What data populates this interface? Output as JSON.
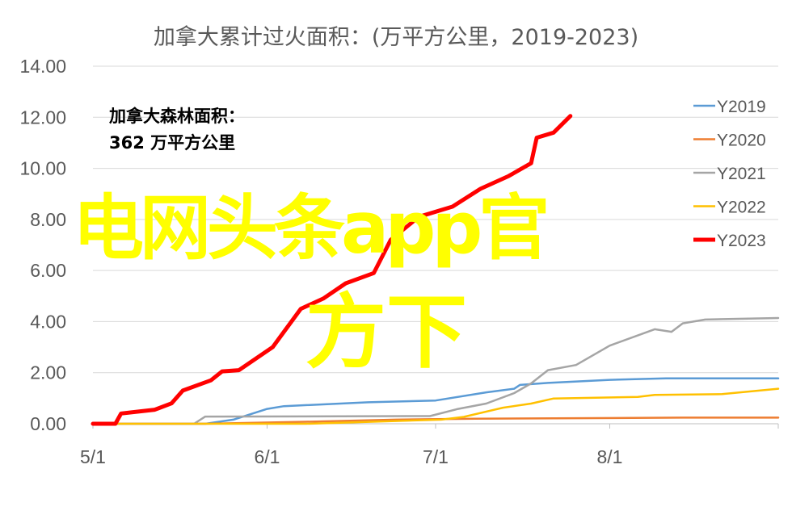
{
  "chart_data": {
    "type": "line",
    "title": "加拿大累计过火面积：(万平方公里，2019-2023)",
    "annotation": [
      "加拿大森林面积：",
      "362 万平方公里"
    ],
    "watermark": [
      "电网头条app官",
      "方下"
    ],
    "xlabel": "",
    "ylabel": "",
    "x_ticks": [
      "5/1",
      "6/1",
      "7/1",
      "8/1"
    ],
    "x_range": [
      "5/1",
      "8/31"
    ],
    "y_ticks": [
      "0.00",
      "2.00",
      "4.00",
      "6.00",
      "8.00",
      "10.00",
      "12.00",
      "14.00"
    ],
    "ylim": [
      0,
      14
    ],
    "grid": "horizontal",
    "legend_position": "right",
    "series": [
      {
        "name": "Y2019",
        "color": "#5B9BD5",
        "points": [
          [
            "5/1",
            0
          ],
          [
            "5/21",
            0
          ],
          [
            "5/26",
            0.16
          ],
          [
            "6/1",
            0.58
          ],
          [
            "6/4",
            0.69
          ],
          [
            "6/19",
            0.84
          ],
          [
            "7/1",
            0.91
          ],
          [
            "7/10",
            1.23
          ],
          [
            "7/15",
            1.37
          ],
          [
            "7/16",
            1.52
          ],
          [
            "7/21",
            1.6
          ],
          [
            "8/1",
            1.72
          ],
          [
            "8/11",
            1.78
          ],
          [
            "8/31",
            1.78
          ]
        ]
      },
      {
        "name": "Y2020",
        "color": "#ED7D31",
        "points": [
          [
            "5/1",
            0
          ],
          [
            "5/21",
            0
          ],
          [
            "6/8",
            0.08
          ],
          [
            "6/24",
            0.16
          ],
          [
            "7/8",
            0.2
          ],
          [
            "8/14",
            0.24
          ],
          [
            "8/31",
            0.24
          ]
        ]
      },
      {
        "name": "Y2021",
        "color": "#A5A5A5",
        "points": [
          [
            "5/1",
            0
          ],
          [
            "5/19",
            0
          ],
          [
            "5/21",
            0.28
          ],
          [
            "6/30",
            0.3
          ],
          [
            "7/5",
            0.58
          ],
          [
            "7/10",
            0.79
          ],
          [
            "7/15",
            1.2
          ],
          [
            "7/18",
            1.58
          ],
          [
            "7/21",
            2.1
          ],
          [
            "7/26",
            2.3
          ],
          [
            "8/1",
            3.06
          ],
          [
            "8/9",
            3.7
          ],
          [
            "8/12",
            3.6
          ],
          [
            "8/14",
            3.93
          ],
          [
            "8/18",
            4.08
          ],
          [
            "8/31",
            4.14
          ]
        ]
      },
      {
        "name": "Y2022",
        "color": "#FFC000",
        "points": [
          [
            "5/1",
            0
          ],
          [
            "6/8",
            0
          ],
          [
            "7/2",
            0.16
          ],
          [
            "7/6",
            0.27
          ],
          [
            "7/13",
            0.63
          ],
          [
            "7/18",
            0.79
          ],
          [
            "7/22",
            0.99
          ],
          [
            "8/6",
            1.05
          ],
          [
            "8/9",
            1.13
          ],
          [
            "8/21",
            1.16
          ],
          [
            "8/31",
            1.37
          ]
        ]
      },
      {
        "name": "Y2023",
        "color": "#FF0000",
        "points": [
          [
            "5/1",
            0
          ],
          [
            "5/5",
            0
          ],
          [
            "5/6",
            0.4
          ],
          [
            "5/12",
            0.55
          ],
          [
            "5/15",
            0.8
          ],
          [
            "5/17",
            1.3
          ],
          [
            "5/22",
            1.7
          ],
          [
            "5/24",
            2.05
          ],
          [
            "5/27",
            2.1
          ],
          [
            "6/2",
            3.0
          ],
          [
            "6/4",
            3.6
          ],
          [
            "6/7",
            4.5
          ],
          [
            "6/11",
            4.9
          ],
          [
            "6/15",
            5.5
          ],
          [
            "6/20",
            5.9
          ],
          [
            "6/23",
            7.2
          ],
          [
            "6/28",
            8.1
          ],
          [
            "7/4",
            8.5
          ],
          [
            "7/9",
            9.2
          ],
          [
            "7/14",
            9.7
          ],
          [
            "7/18",
            10.2
          ],
          [
            "7/19",
            11.2
          ],
          [
            "7/22",
            11.4
          ],
          [
            "7/25",
            12.05
          ]
        ]
      }
    ]
  }
}
